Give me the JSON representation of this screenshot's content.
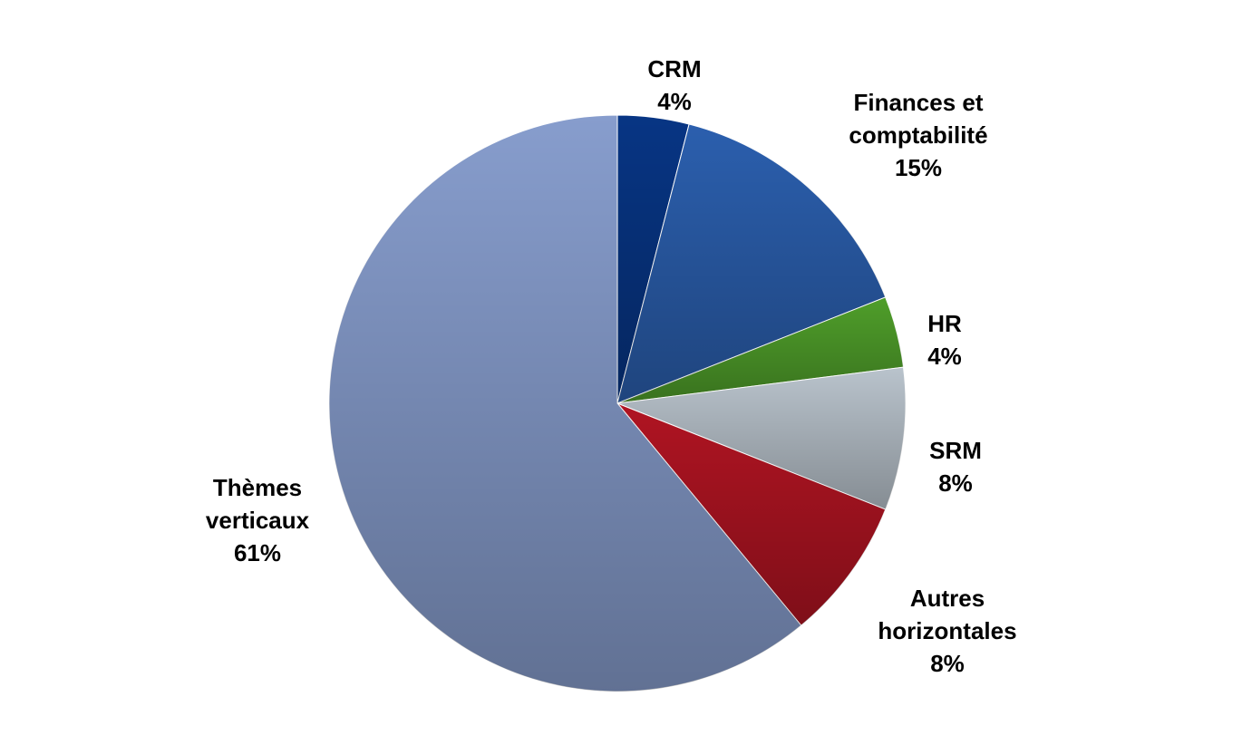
{
  "chart_data": {
    "type": "pie",
    "categories": [
      "CRM",
      "Finances et comptabilité",
      "HR",
      "SRM",
      "Autres horizontales",
      "Thèmes verticaux"
    ],
    "values": [
      4,
      15,
      4,
      8,
      8,
      61
    ],
    "value_labels": [
      "4%",
      "15%",
      "4%",
      "8%",
      "8%",
      "61%"
    ],
    "colors": [
      "#073584",
      "#2b5fae",
      "#4f9e2a",
      "#b9c3cc",
      "#b01422",
      "#879dcd"
    ]
  }
}
